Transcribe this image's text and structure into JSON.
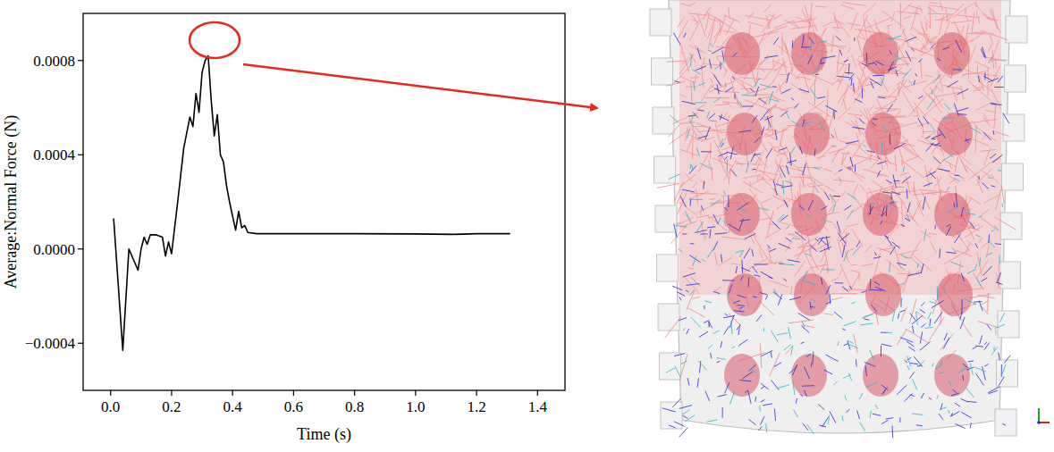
{
  "chart_data": {
    "type": "line",
    "xlabel": "Time (s)",
    "ylabel": "Average:Normal Force (N)",
    "x": [
      0.01,
      0.04,
      0.06,
      0.09,
      0.1,
      0.11,
      0.12,
      0.13,
      0.15,
      0.17,
      0.18,
      0.19,
      0.2,
      0.22,
      0.24,
      0.26,
      0.27,
      0.28,
      0.29,
      0.3,
      0.31,
      0.32,
      0.33,
      0.34,
      0.35,
      0.36,
      0.37,
      0.38,
      0.39,
      0.4,
      0.41,
      0.42,
      0.43,
      0.44,
      0.45,
      0.48,
      0.6,
      0.8,
      1.0,
      1.12,
      1.2,
      1.31
    ],
    "values": [
      0.00013,
      -0.00043,
      0.0,
      -9e-05,
      0.0,
      5e-05,
      2e-05,
      6e-05,
      6e-05,
      5e-05,
      -3e-05,
      3e-05,
      -2e-05,
      0.0002,
      0.00043,
      0.00056,
      0.00052,
      0.00066,
      0.00058,
      0.00075,
      0.0008,
      0.00082,
      0.00063,
      0.00048,
      0.00057,
      0.0004,
      0.00037,
      0.00027,
      0.0002,
      0.00014,
      8e-05,
      0.00016,
      9e-05,
      0.0001,
      7e-05,
      6.5e-05,
      6.5e-05,
      6.5e-05,
      6.4e-05,
      6.2e-05,
      6.5e-05,
      6.5e-05
    ],
    "color": "#000000",
    "line_style": "solid",
    "grid": false,
    "xlim": [
      -0.09,
      1.49
    ],
    "xticks": [
      {
        "value": 0,
        "label": "0.0"
      },
      {
        "value": 0.2,
        "label": "0.2"
      },
      {
        "value": 0.4,
        "label": "0.4"
      },
      {
        "value": 0.6,
        "label": "0.6"
      },
      {
        "value": 0.8,
        "label": "0.8"
      },
      {
        "value": 1,
        "label": "1.0"
      },
      {
        "value": 1.2,
        "label": "1.2"
      },
      {
        "value": 1.4,
        "label": "1.4"
      }
    ],
    "ylim": [
      -0.0006,
      0.001
    ],
    "yticks": [
      {
        "value": -0.0004,
        "label": "−0.0004"
      },
      {
        "value": 0,
        "label": "0.0000"
      },
      {
        "value": 0.0004,
        "label": "0.0004"
      },
      {
        "value": 0.0008,
        "label": "0.0008"
      }
    ]
  }
}
